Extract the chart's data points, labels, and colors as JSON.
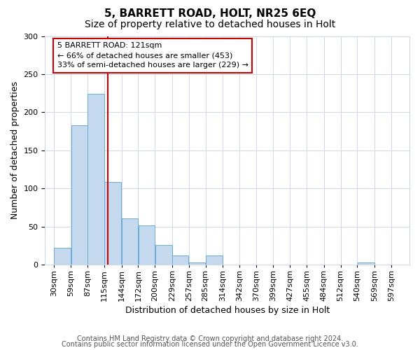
{
  "title": "5, BARRETT ROAD, HOLT, NR25 6EQ",
  "subtitle": "Size of property relative to detached houses in Holt",
  "xlabel": "Distribution of detached houses by size in Holt",
  "ylabel": "Number of detached properties",
  "bar_values": [
    22,
    183,
    224,
    108,
    61,
    51,
    26,
    12,
    3,
    12,
    0,
    0,
    0,
    0,
    0,
    0,
    0,
    0,
    3,
    0,
    0
  ],
  "bin_labels": [
    "30sqm",
    "59sqm",
    "87sqm",
    "115sqm",
    "144sqm",
    "172sqm",
    "200sqm",
    "229sqm",
    "257sqm",
    "285sqm",
    "314sqm",
    "342sqm",
    "370sqm",
    "399sqm",
    "427sqm",
    "455sqm",
    "484sqm",
    "512sqm",
    "540sqm",
    "569sqm",
    "597sqm"
  ],
  "bin_edges": [
    30,
    59,
    87,
    115,
    144,
    172,
    200,
    229,
    257,
    285,
    314,
    342,
    370,
    399,
    427,
    455,
    484,
    512,
    540,
    569,
    597
  ],
  "bar_color": "#c5d9ee",
  "bar_edgecolor": "#6aaad4",
  "vline_x": 121,
  "vline_color": "#cc0000",
  "ylim": [
    0,
    300
  ],
  "yticks": [
    0,
    50,
    100,
    150,
    200,
    250,
    300
  ],
  "annotation_box_text": "5 BARRETT ROAD: 121sqm\n← 66% of detached houses are smaller (453)\n33% of semi-detached houses are larger (229) →",
  "annotation_box_edgecolor": "#cc0000",
  "footer_line1": "Contains HM Land Registry data © Crown copyright and database right 2024.",
  "footer_line2": "Contains public sector information licensed under the Open Government Licence v3.0.",
  "background_color": "#ffffff",
  "grid_color": "#d0d8e8",
  "title_fontsize": 11,
  "subtitle_fontsize": 10,
  "axis_label_fontsize": 9,
  "tick_fontsize": 8,
  "footer_fontsize": 7
}
